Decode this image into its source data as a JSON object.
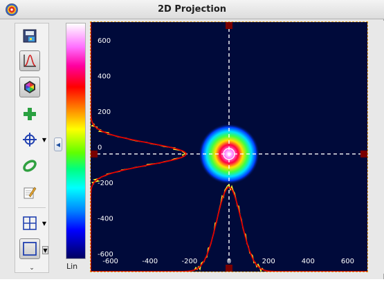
{
  "window": {
    "title": "2D Projection"
  },
  "toolbar": {
    "buttons": [
      {
        "name": "save-image",
        "icon": "save-image-icon",
        "active": false
      },
      {
        "name": "profile",
        "icon": "profile-curve-icon",
        "active": true
      },
      {
        "name": "colormap",
        "icon": "color-palette-icon",
        "active": true
      },
      {
        "name": "add",
        "icon": "plus-icon",
        "active": false
      },
      {
        "name": "crosshair",
        "icon": "crosshair-icon",
        "active": false,
        "dropdown": true
      },
      {
        "name": "ellipse",
        "icon": "ellipse-icon",
        "active": false
      },
      {
        "name": "edit",
        "icon": "edit-icon",
        "active": false
      },
      {
        "name": "grid",
        "icon": "grid-icon",
        "active": false,
        "dropdown": true
      },
      {
        "name": "rectangle",
        "icon": "rectangle-icon",
        "active": true,
        "dropdown": true
      }
    ],
    "more_glyph": "⌄"
  },
  "colorbar": {
    "scale_label": "Lin"
  },
  "plot": {
    "x_ticks": [
      "-600",
      "-400",
      "-200",
      "0",
      "200",
      "400",
      "600"
    ],
    "y_ticks": [
      "600",
      "400",
      "200",
      "0",
      "-200",
      "-400",
      "-600"
    ],
    "range": [
      -700,
      700
    ],
    "beam_center": [
      0,
      -40
    ],
    "colors": {
      "background": "#000a3a",
      "crosshair": "#ffffff",
      "profile_fit": "#e00000",
      "profile_raw": "#ffff30",
      "marker": "#7a0000"
    }
  }
}
